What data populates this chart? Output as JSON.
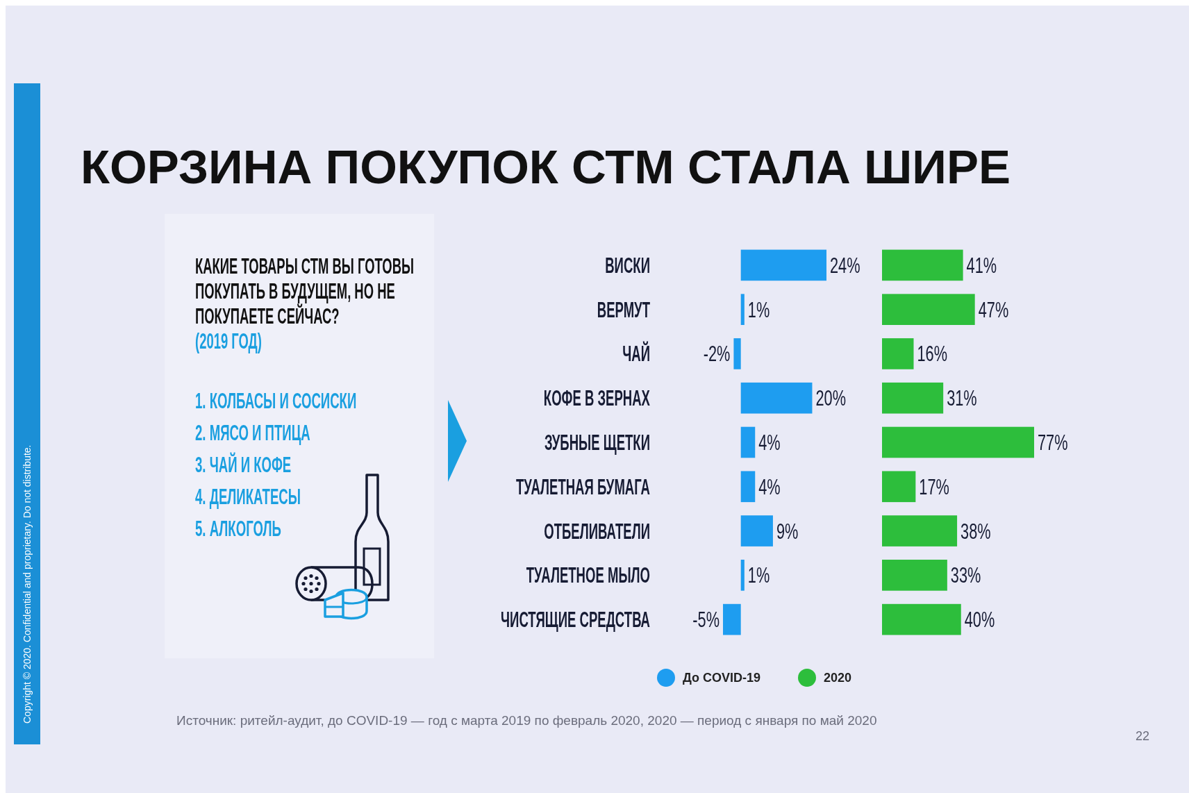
{
  "chart_data": [
    {
      "type": "other",
      "title": "КАКИЕ ТОВАРЫ СТМ ВЫ ГОТОВЫ ПОКУПАТЬ В БУДУЩЕМ, НО НЕ ПОКУПАЕТЕ СЕЙЧАС?",
      "subtitle": "(2019 ГОД)",
      "annotations": [
        "1. КОЛБАСЫ И СОСИСКИ",
        "2. МЯСО И ПТИЦА",
        "3. ЧАЙ И КОФЕ",
        "4. ДЕЛИКАТЕСЫ",
        "5. АЛКОГОЛЬ"
      ]
    },
    {
      "type": "bar",
      "orientation": "horizontal",
      "title": "КОРЗИНА ПОКУПОК СТМ СТАЛА ШИРЕ",
      "categories": [
        "ВИСКИ",
        "ВЕРМУТ",
        "ЧАЙ",
        "КОФЕ В ЗЕРНАХ",
        "ЗУБНЫЕ ЩЕТКИ",
        "ТУАЛЕТНАЯ БУМАГА",
        "ОТБЕЛИВАТЕЛИ",
        "ТУАЛЕТНОЕ МЫЛО",
        "ЧИСТЯЩИЕ СРЕДСТВА"
      ],
      "series": [
        {
          "name": "До COVID-19",
          "color": "#1e9df0",
          "values": [
            24,
            1,
            -2,
            20,
            4,
            4,
            9,
            1,
            -5
          ],
          "value_labels": [
            "24%",
            "1%",
            "-2%",
            "20%",
            "4%",
            "4%",
            "9%",
            "1%",
            "-5%"
          ]
        }
      ],
      "legend": "bottom",
      "annotations": [
        "Copyright © 2020. Confidential and proprietary. Do not distribute.",
        "Источник: ритейл-аудит, до COVID-19 — год с марта 2019 по февраль 2020, 2020 — период с января по май 2020",
        "22"
      ]
    },
    {
      "type": "bar",
      "orientation": "horizontal",
      "categories": [
        null,
        null,
        null,
        null,
        null,
        null,
        null,
        null,
        null
      ],
      "series": [
        {
          "name": "2020",
          "color": "#2dbe3c",
          "values": [
            41,
            47,
            16,
            31,
            77,
            17,
            38,
            33,
            40
          ],
          "value_labels": [
            "41%",
            "47%",
            "16%",
            "31%",
            "77%",
            "17%",
            "38%",
            "33%",
            "40%"
          ]
        }
      ],
      "legend": "bottom"
    }
  ]
}
